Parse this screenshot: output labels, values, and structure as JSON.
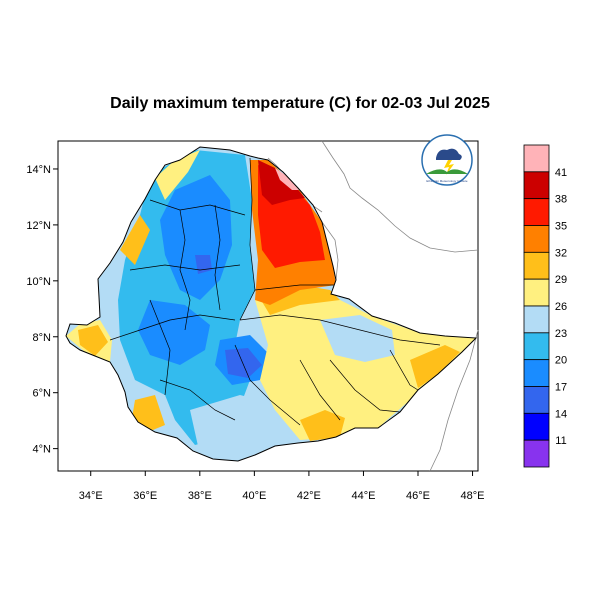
{
  "title": "Daily maximum temperature (C) for 02-03 Jul 2025",
  "map": {
    "lon_labels": [
      "34°E",
      "36°E",
      "38°E",
      "40°E",
      "42°E",
      "44°E",
      "46°E",
      "48°E"
    ],
    "lat_labels": [
      "14°N",
      "12°N",
      "10°N",
      "8°N",
      "6°N",
      "4°N"
    ],
    "lon_values": [
      34,
      36,
      38,
      40,
      42,
      44,
      46,
      48
    ],
    "lat_values": [
      14,
      12,
      10,
      8,
      6,
      4
    ],
    "lon_range": [
      32.8,
      48.2
    ],
    "lat_range": [
      3.2,
      15.0
    ]
  },
  "legend": {
    "labels": [
      "41",
      "38",
      "35",
      "32",
      "29",
      "26",
      "23",
      "20",
      "17",
      "14",
      "11"
    ],
    "colors": [
      "#ffb3b8",
      "#cc0000",
      "#ff1a00",
      "#ff8000",
      "#ffbf1a",
      "#fff080",
      "#b3dcf5",
      "#33bbee",
      "#1a8cff",
      "#3366ee",
      "#0000ff",
      "#8833ee"
    ]
  },
  "logo_text": "Ethiopian Meteorology Institute",
  "colors": {
    "very_hot": "#cc0000",
    "hot": "#ff1a00",
    "warm": "#ff8000",
    "orange": "#ffbf1a",
    "yellow": "#fff080",
    "light_blue": "#b3dcf5",
    "sky": "#33bbee",
    "blue": "#1a8cff",
    "deep_blue": "#3366ee"
  }
}
